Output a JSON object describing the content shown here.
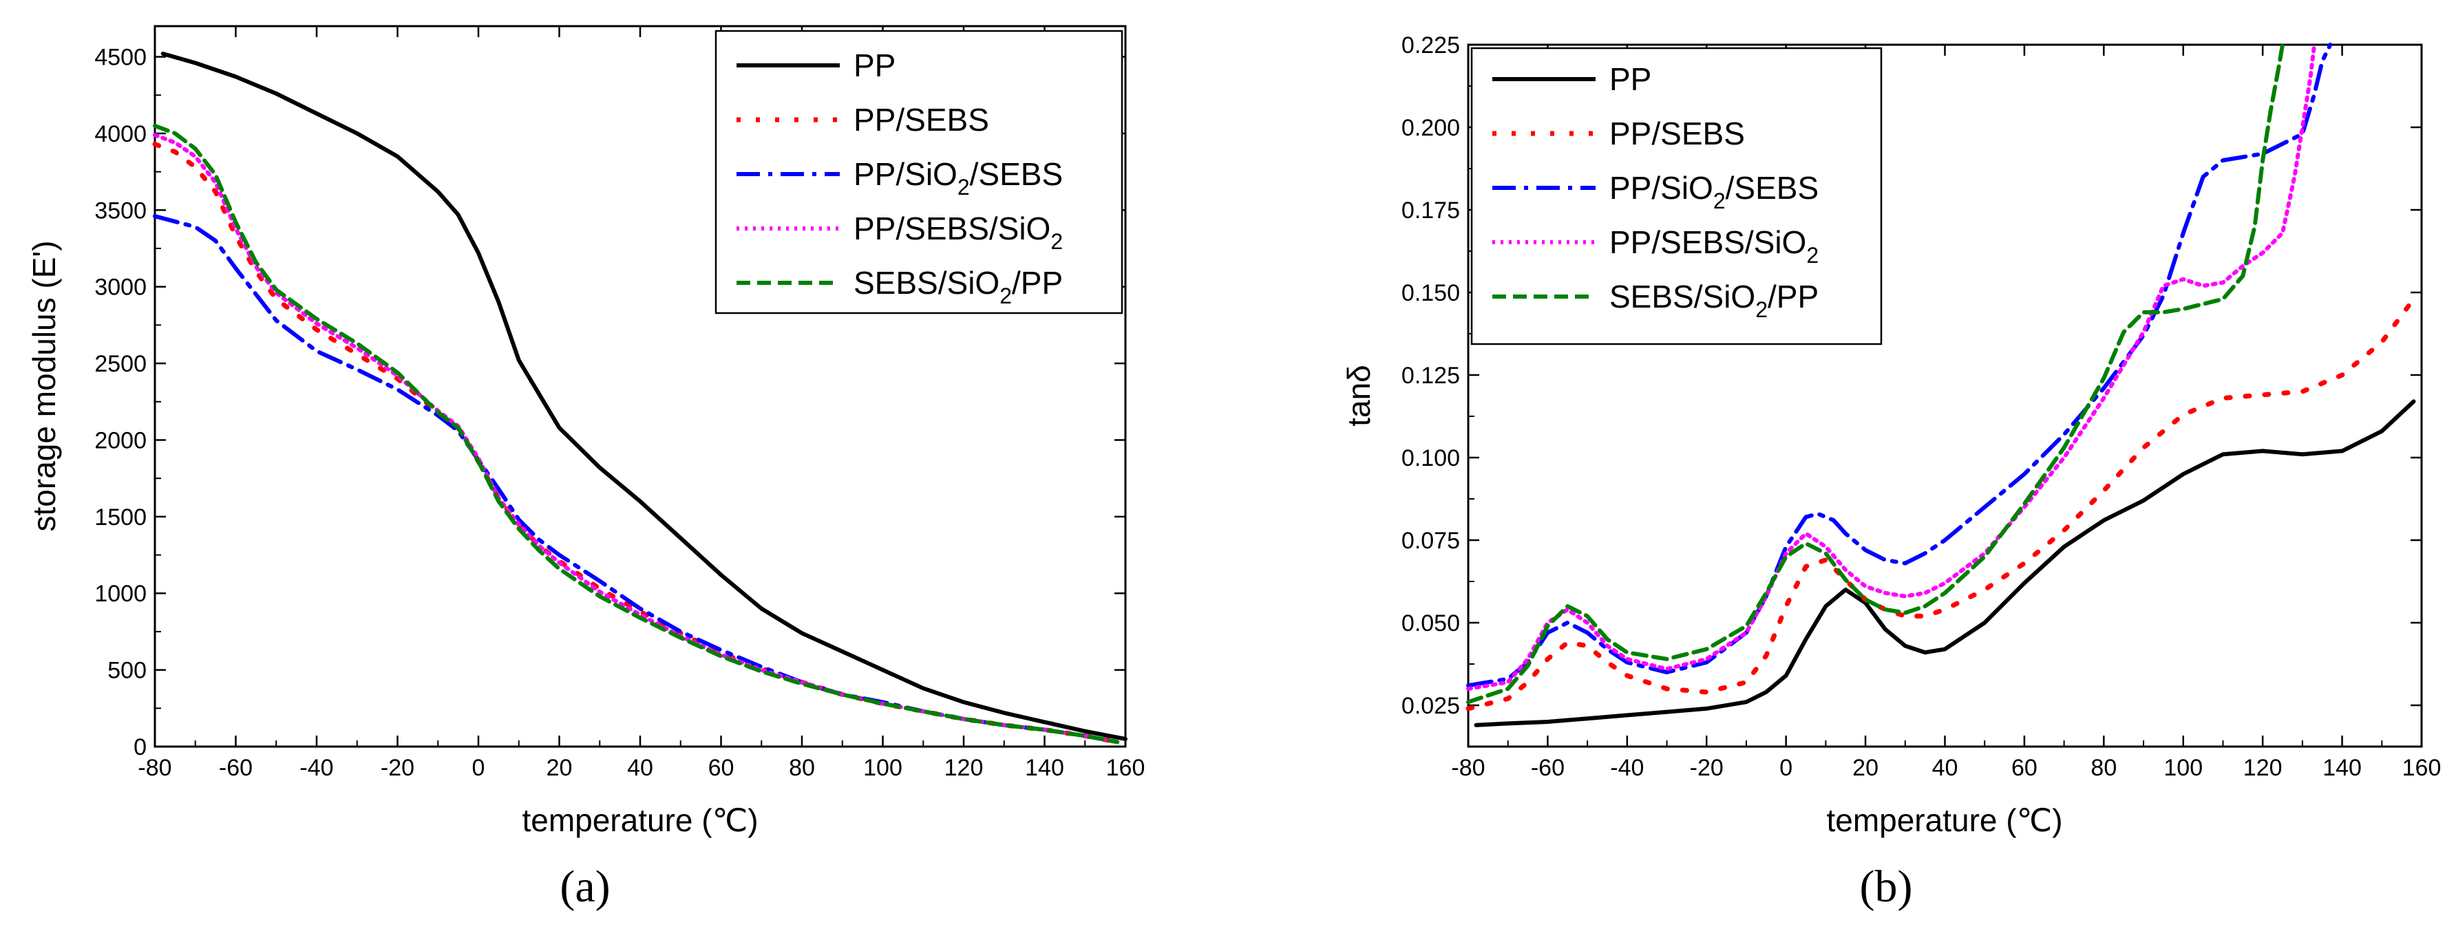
{
  "series_styles": [
    {
      "color": "#000000",
      "dash": "none",
      "width": 6
    },
    {
      "color": "#ff0000",
      "dash": "6 22",
      "width": 7
    },
    {
      "color": "#0000ff",
      "dash": "34 12 6 12",
      "width": 6
    },
    {
      "color": "#ff00ff",
      "dash": "4 8",
      "width": 6
    },
    {
      "color": "#008000",
      "dash": "20 10",
      "width": 6
    }
  ],
  "chart_data": [
    {
      "type": "line",
      "panel_label": "(a)",
      "xlabel": "temperature (℃)",
      "ylabel": "storage modulus (E')",
      "xlim": [
        -80,
        160
      ],
      "ylim": [
        0,
        4700
      ],
      "xticks": [
        -80,
        -60,
        -40,
        -20,
        0,
        20,
        40,
        60,
        80,
        100,
        120,
        140,
        160
      ],
      "yticks": [
        0,
        500,
        1000,
        1500,
        2000,
        2500,
        3000,
        3500,
        4000,
        4500
      ],
      "legend_position": "top-right",
      "series": [
        {
          "name": "PP",
          "legend": [
            "PP"
          ],
          "x": [
            -78,
            -70,
            -60,
            -50,
            -40,
            -30,
            -20,
            -10,
            -5,
            0,
            5,
            10,
            15,
            20,
            30,
            40,
            50,
            60,
            70,
            80,
            90,
            100,
            110,
            120,
            130,
            140,
            150,
            160
          ],
          "y": [
            4520,
            4460,
            4370,
            4260,
            4130,
            4000,
            3850,
            3620,
            3470,
            3220,
            2900,
            2520,
            2300,
            2080,
            1820,
            1600,
            1360,
            1120,
            900,
            740,
            620,
            500,
            380,
            290,
            220,
            160,
            100,
            50
          ]
        },
        {
          "name": "PP/SEBS",
          "legend": [
            "PP/SEBS"
          ],
          "x": [
            -80,
            -75,
            -70,
            -65,
            -60,
            -55,
            -50,
            -40,
            -30,
            -20,
            -10,
            -5,
            0,
            5,
            10,
            15,
            20,
            30,
            40,
            50,
            60,
            70,
            80,
            90,
            100,
            110,
            120,
            130,
            140,
            150,
            158
          ],
          "y": [
            3930,
            3880,
            3780,
            3620,
            3330,
            3100,
            2920,
            2720,
            2560,
            2400,
            2180,
            2080,
            1860,
            1620,
            1450,
            1310,
            1210,
            1030,
            880,
            740,
            610,
            510,
            420,
            340,
            280,
            230,
            180,
            140,
            110,
            70,
            30
          ]
        },
        {
          "name": "PP/SiO2/SEBS",
          "legend": [
            "PP/SiO",
            "2",
            "/SEBS"
          ],
          "x": [
            -80,
            -70,
            -65,
            -60,
            -55,
            -50,
            -40,
            -30,
            -20,
            -10,
            -5,
            0,
            5,
            10,
            15,
            20,
            30,
            40,
            50,
            60,
            70,
            80,
            90,
            100,
            110,
            120,
            130,
            140,
            150,
            158
          ],
          "y": [
            3460,
            3390,
            3300,
            3120,
            2950,
            2780,
            2580,
            2460,
            2330,
            2160,
            2060,
            1870,
            1680,
            1480,
            1350,
            1250,
            1080,
            900,
            750,
            630,
            520,
            420,
            340,
            290,
            230,
            180,
            140,
            110,
            70,
            30
          ]
        },
        {
          "name": "PP/SEBS/SiO2",
          "legend": [
            "PP/SEBS/SiO",
            "2",
            ""
          ],
          "x": [
            -80,
            -75,
            -70,
            -65,
            -60,
            -55,
            -50,
            -40,
            -30,
            -20,
            -10,
            -5,
            0,
            5,
            10,
            15,
            20,
            30,
            40,
            50,
            60,
            70,
            80,
            90,
            100,
            110,
            120,
            130,
            140,
            150,
            158
          ],
          "y": [
            3990,
            3940,
            3850,
            3680,
            3380,
            3130,
            2960,
            2760,
            2600,
            2420,
            2190,
            2090,
            1880,
            1620,
            1450,
            1310,
            1200,
            1010,
            860,
            720,
            600,
            500,
            420,
            340,
            280,
            230,
            180,
            140,
            110,
            70,
            30
          ]
        },
        {
          "name": "SEBS/SiO2/PP",
          "legend": [
            "SEBS/SiO",
            "2",
            "/PP"
          ],
          "x": [
            -80,
            -75,
            -70,
            -65,
            -60,
            -55,
            -50,
            -40,
            -30,
            -20,
            -10,
            -5,
            0,
            5,
            10,
            15,
            20,
            30,
            40,
            50,
            60,
            70,
            80,
            90,
            100,
            110,
            120,
            130,
            140,
            150,
            158
          ],
          "y": [
            4050,
            4000,
            3900,
            3730,
            3420,
            3160,
            2980,
            2790,
            2630,
            2440,
            2180,
            2080,
            1860,
            1600,
            1420,
            1280,
            1160,
            980,
            840,
            710,
            590,
            490,
            410,
            340,
            280,
            230,
            180,
            140,
            110,
            70,
            30
          ]
        }
      ]
    },
    {
      "type": "line",
      "panel_label": "(b)",
      "xlabel": "temperature (℃)",
      "ylabel": "tanδ",
      "xlim": [
        -80,
        160
      ],
      "ylim": [
        0.0125,
        0.225
      ],
      "xticks": [
        -80,
        -60,
        -40,
        -20,
        0,
        20,
        40,
        60,
        80,
        100,
        120,
        140,
        160
      ],
      "yticks": [
        0.025,
        0.05,
        0.075,
        0.1,
        0.125,
        0.15,
        0.175,
        0.2,
        0.225
      ],
      "ytick_labels": [
        "0.025",
        "0.050",
        "0.075",
        "0.100",
        "0.125",
        "0.150",
        "0.175",
        "0.200",
        "0.225"
      ],
      "legend_position": "top-left",
      "series": [
        {
          "name": "PP",
          "legend": [
            "PP"
          ],
          "x": [
            -78,
            -70,
            -60,
            -50,
            -40,
            -30,
            -20,
            -10,
            -5,
            0,
            5,
            10,
            15,
            20,
            25,
            30,
            35,
            40,
            50,
            60,
            70,
            80,
            90,
            100,
            110,
            120,
            130,
            140,
            150,
            158
          ],
          "y": [
            0.019,
            0.0195,
            0.02,
            0.021,
            0.022,
            0.023,
            0.024,
            0.026,
            0.029,
            0.034,
            0.045,
            0.055,
            0.06,
            0.056,
            0.048,
            0.043,
            0.041,
            0.042,
            0.05,
            0.062,
            0.073,
            0.081,
            0.087,
            0.095,
            0.101,
            0.102,
            0.101,
            0.102,
            0.108,
            0.117
          ]
        },
        {
          "name": "PP/SEBS",
          "legend": [
            "PP/SEBS"
          ],
          "x": [
            -80,
            -70,
            -65,
            -60,
            -55,
            -50,
            -45,
            -40,
            -30,
            -20,
            -10,
            -5,
            0,
            5,
            10,
            15,
            20,
            25,
            30,
            35,
            40,
            50,
            60,
            70,
            80,
            90,
            100,
            110,
            120,
            130,
            140,
            150,
            158
          ],
          "y": [
            0.024,
            0.027,
            0.032,
            0.039,
            0.044,
            0.043,
            0.038,
            0.034,
            0.03,
            0.029,
            0.032,
            0.04,
            0.055,
            0.067,
            0.069,
            0.063,
            0.057,
            0.054,
            0.052,
            0.052,
            0.054,
            0.06,
            0.068,
            0.078,
            0.09,
            0.103,
            0.113,
            0.118,
            0.119,
            0.12,
            0.125,
            0.135,
            0.148
          ]
        },
        {
          "name": "PP/SiO2/SEBS",
          "legend": [
            "PP/SiO",
            "2",
            "/SEBS"
          ],
          "x": [
            -80,
            -70,
            -65,
            -60,
            -55,
            -50,
            -45,
            -40,
            -30,
            -20,
            -10,
            -5,
            0,
            5,
            8,
            12,
            15,
            20,
            25,
            30,
            35,
            40,
            50,
            60,
            70,
            80,
            90,
            95,
            100,
            105,
            110,
            120,
            130,
            133,
            135,
            137
          ],
          "y": [
            0.031,
            0.033,
            0.038,
            0.047,
            0.05,
            0.047,
            0.042,
            0.038,
            0.035,
            0.038,
            0.047,
            0.058,
            0.073,
            0.082,
            0.083,
            0.081,
            0.077,
            0.072,
            0.069,
            0.068,
            0.071,
            0.075,
            0.085,
            0.095,
            0.107,
            0.121,
            0.137,
            0.149,
            0.168,
            0.185,
            0.19,
            0.192,
            0.198,
            0.21,
            0.22,
            0.225
          ]
        },
        {
          "name": "PP/SEBS/SiO2",
          "legend": [
            "PP/SEBS/SiO",
            "2",
            ""
          ],
          "x": [
            -80,
            -70,
            -65,
            -60,
            -55,
            -50,
            -45,
            -40,
            -30,
            -20,
            -10,
            -5,
            0,
            5,
            10,
            15,
            20,
            25,
            30,
            35,
            40,
            50,
            60,
            70,
            80,
            90,
            95,
            100,
            105,
            110,
            115,
            120,
            125,
            128,
            130,
            132,
            133
          ],
          "y": [
            0.03,
            0.032,
            0.039,
            0.05,
            0.054,
            0.05,
            0.043,
            0.039,
            0.036,
            0.039,
            0.047,
            0.058,
            0.071,
            0.077,
            0.073,
            0.066,
            0.061,
            0.059,
            0.058,
            0.059,
            0.062,
            0.071,
            0.085,
            0.1,
            0.118,
            0.138,
            0.152,
            0.154,
            0.152,
            0.153,
            0.158,
            0.162,
            0.168,
            0.185,
            0.2,
            0.215,
            0.225
          ]
        },
        {
          "name": "SEBS/SiO2/PP",
          "legend": [
            "SEBS/SiO",
            "2",
            "/PP"
          ],
          "x": [
            -80,
            -70,
            -65,
            -60,
            -55,
            -50,
            -45,
            -40,
            -30,
            -20,
            -10,
            -5,
            0,
            5,
            10,
            15,
            20,
            25,
            30,
            35,
            40,
            50,
            60,
            70,
            80,
            85,
            90,
            95,
            100,
            110,
            115,
            118,
            120,
            122,
            124,
            125
          ],
          "y": [
            0.026,
            0.03,
            0.037,
            0.049,
            0.055,
            0.052,
            0.045,
            0.041,
            0.039,
            0.042,
            0.049,
            0.059,
            0.07,
            0.074,
            0.071,
            0.063,
            0.057,
            0.054,
            0.053,
            0.055,
            0.059,
            0.07,
            0.086,
            0.103,
            0.124,
            0.138,
            0.144,
            0.144,
            0.145,
            0.148,
            0.155,
            0.17,
            0.19,
            0.205,
            0.218,
            0.225
          ]
        }
      ]
    }
  ]
}
